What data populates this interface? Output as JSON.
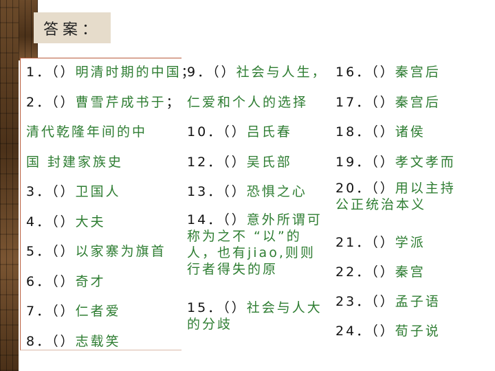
{
  "header": {
    "title": "答案："
  },
  "answers": {
    "col1": [
      {
        "num": "1．",
        "sep": "（）",
        "ans": "明清时期的中国",
        "tail": "；"
      },
      {
        "num": "2．",
        "sep": "（）",
        "ans": "曹雪芹成书于",
        "tail": "；"
      },
      {
        "num": "",
        "sep": "",
        "ans": "清代乾隆年间的中",
        "tail": ""
      },
      {
        "num": "",
        "sep": "",
        "ans": "国 封建家族史",
        "tail": ""
      },
      {
        "num": "3．",
        "sep": "（）",
        "ans": "卫国人",
        "tail": ""
      },
      {
        "num": "4．",
        "sep": "（）",
        "ans": "大夫",
        "tail": ""
      },
      {
        "num": "5．",
        "sep": "（）",
        "ans": "以家寨为旗首",
        "tail": ""
      },
      {
        "num": "6．",
        "sep": "（）",
        "ans": "奇才",
        "tail": ""
      },
      {
        "num": "7．",
        "sep": "（）",
        "ans": "仁者爱",
        "tail": ""
      },
      {
        "num": "8．",
        "sep": "（）",
        "ans": "志载笑",
        "tail": ""
      }
    ],
    "col2": [
      {
        "num": "9．",
        "sep": "（）",
        "ans": "社会与人生，",
        "tail": ""
      },
      {
        "num": "",
        "sep": "",
        "ans": "仁爱和个人的选择",
        "tail": ""
      },
      {
        "num": "10．",
        "sep": "（）",
        "ans": "吕氏春",
        "tail": ""
      },
      {
        "num": "12．",
        "sep": "（）",
        "ans": "吴氏部",
        "tail": ""
      },
      {
        "num": "13．",
        "sep": "（）",
        "ans": "恐惧之心",
        "tail": ""
      },
      {
        "num": "14．",
        "sep": "（）",
        "ans": "意外所谓可称为之不 “以”的人，也有jiao,则则行者得失的原",
        "tail": ""
      },
      {
        "num": "15．",
        "sep": "（）",
        "ans": "社会与人大的分歧",
        "tail": ""
      }
    ],
    "col3": [
      {
        "num": "16．",
        "sep": "（）",
        "ans": "秦宫后",
        "tail": ""
      },
      {
        "num": "17．",
        "sep": "（）",
        "ans": "秦宫后",
        "tail": ""
      },
      {
        "num": "18．",
        "sep": "（）",
        "ans": "诸侯",
        "tail": ""
      },
      {
        "num": "19．",
        "sep": "（）",
        "ans": "孝文孝而",
        "tail": ""
      },
      {
        "num": "20．",
        "sep": "（）",
        "ans": "用以主持公正统治本义",
        "tail": ""
      },
      {
        "num": "21．",
        "sep": "（）",
        "ans": "学派",
        "tail": ""
      },
      {
        "num": "22．",
        "sep": "（）",
        "ans": "秦宫",
        "tail": ""
      },
      {
        "num": "23．",
        "sep": "（）",
        "ans": "孟子语",
        "tail": ""
      },
      {
        "num": "24．",
        "sep": "（）",
        "ans": "荀子说",
        "tail": ""
      }
    ]
  }
}
